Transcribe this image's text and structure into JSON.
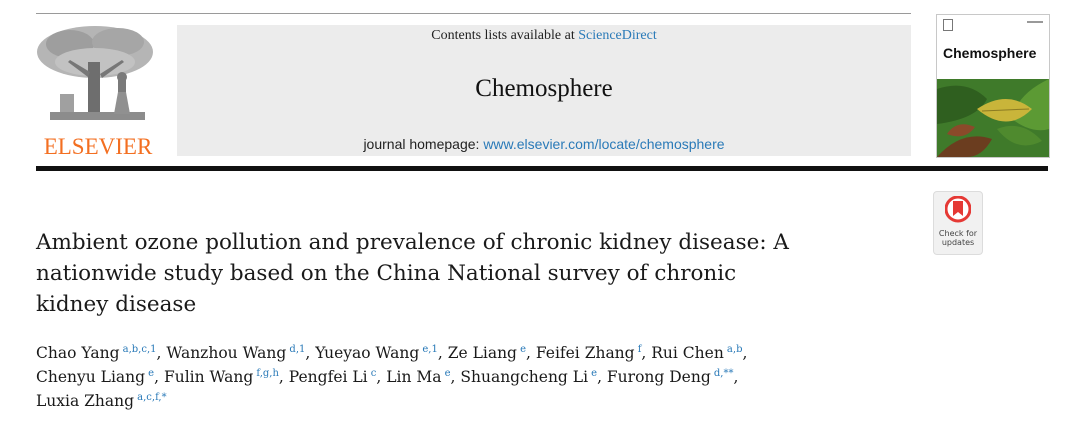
{
  "header": {
    "publisher_name": "ELSEVIER",
    "contents_prefix": "Contents lists available at",
    "contents_link": "ScienceDirect",
    "journal_title": "Chemosphere",
    "homepage_prefix": "journal homepage:",
    "homepage_link": "www.elsevier.com/locate/chemosphere"
  },
  "cover": {
    "title": "Chemosphere"
  },
  "check_updates": {
    "line1": "Check for",
    "line2": "updates"
  },
  "article": {
    "title_lines": [
      "Ambient ozone pollution and prevalence of chronic kidney disease: A",
      "nationwide study based on the China National survey of chronic",
      "kidney disease"
    ]
  },
  "authors": [
    {
      "name": "Chao Yang",
      "sup": "a,b,c,1"
    },
    {
      "name": "Wanzhou Wang",
      "sup": "d,1"
    },
    {
      "name": "Yueyao Wang",
      "sup": "e,1"
    },
    {
      "name": "Ze Liang",
      "sup": "e"
    },
    {
      "name": "Feifei Zhang",
      "sup": "f"
    },
    {
      "name": "Rui Chen",
      "sup": "a,b"
    },
    {
      "name": "Chenyu Liang",
      "sup": "e"
    },
    {
      "name": "Fulin Wang",
      "sup": "f,g,h"
    },
    {
      "name": "Pengfei Li",
      "sup": "c"
    },
    {
      "name": "Lin Ma",
      "sup": "e"
    },
    {
      "name": "Shuangcheng Li",
      "sup": "e"
    },
    {
      "name": "Furong Deng",
      "sup": "d,**"
    },
    {
      "name": "Luxia Zhang",
      "sup": "a,c,f,*"
    }
  ],
  "colors": {
    "brand_orange": "#f36f21",
    "link_blue": "#2a7ab8",
    "header_band": "#ececec"
  }
}
